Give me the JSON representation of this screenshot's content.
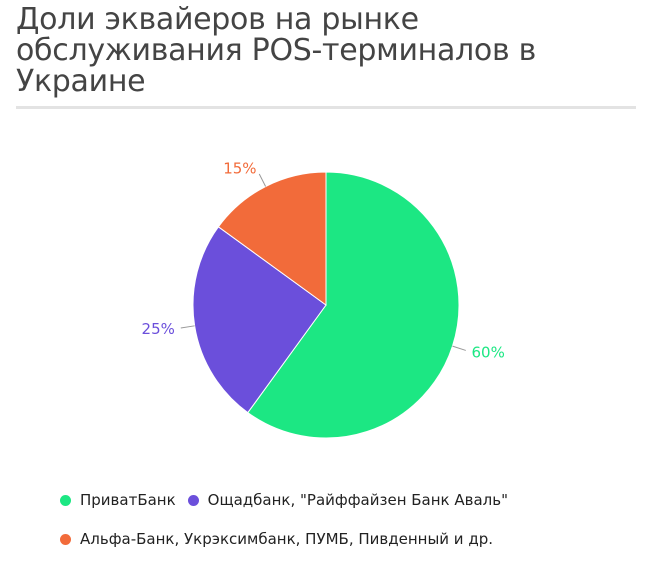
{
  "title": "Доли эквайеров на рынке обслуживания POS-терминалов в Украине",
  "colors": {
    "series_0": "#1ce783",
    "series_1": "#6b4fdb",
    "series_2": "#f26b3a"
  },
  "chart_data": {
    "type": "pie",
    "title": "Доли эквайеров на рынке обслуживания POS-терминалов в Украине",
    "categories": [
      "ПриватБанк",
      "Ощадбанк, \"Райффайзен Банк Аваль\"",
      "Альфа-Банк, Укрэксимбанк, ПУМБ, Пивденный и др."
    ],
    "values": [
      60,
      25,
      15
    ],
    "value_labels": [
      "60%",
      "25%",
      "15%"
    ],
    "legend_position": "bottom"
  }
}
